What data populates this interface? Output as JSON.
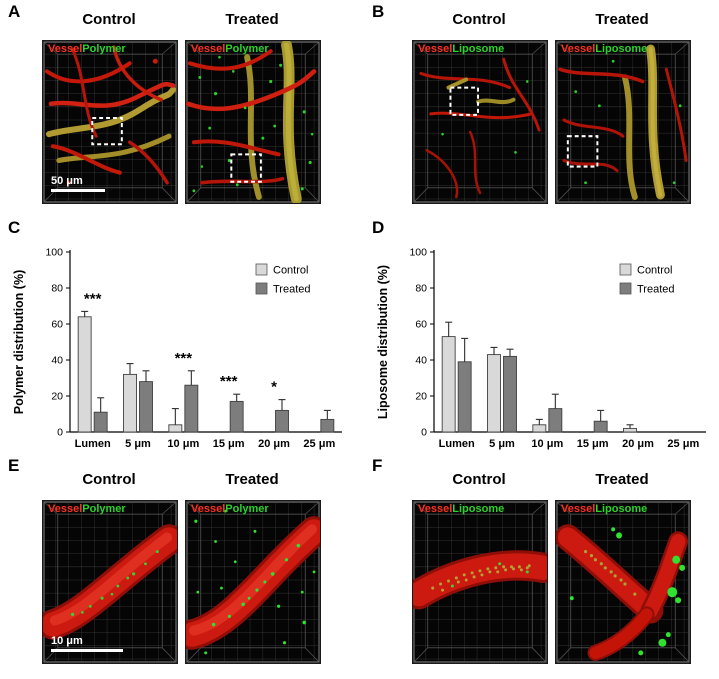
{
  "panels": {
    "A": {
      "letter": "A",
      "col1": "Control",
      "col2": "Treated",
      "legend_red": "Vessel",
      "legend_green": "Polymer",
      "scale_bar": "50 μm"
    },
    "B": {
      "letter": "B",
      "col1": "Control",
      "col2": "Treated",
      "legend_red": "Vessel",
      "legend_green": "Liposome"
    },
    "C": {
      "letter": "C"
    },
    "D": {
      "letter": "D"
    },
    "E": {
      "letter": "E",
      "col1": "Control",
      "col2": "Treated",
      "legend_red": "Vessel",
      "legend_green": "Polymer",
      "scale_bar": "10 μm"
    },
    "F": {
      "letter": "F",
      "col1": "Control",
      "col2": "Treated",
      "legend_red": "Vessel",
      "legend_green": "Liposome"
    }
  },
  "colors": {
    "control_bar": "#d9d9d9",
    "treated_bar": "#7d7d7d",
    "bar_outline": "#404040",
    "vessel_red": "#ff3020",
    "marker_green": "#2bd42b"
  },
  "chart_data": [
    {
      "type": "bar",
      "panel": "C",
      "title": "",
      "ylabel": "Polymer distribution (%)",
      "xlabel": "",
      "categories": [
        "Lumen",
        "5 μm",
        "10 μm",
        "15 μm",
        "20 μm",
        "25 μm"
      ],
      "series": [
        {
          "name": "Control",
          "values": [
            64,
            32,
            4,
            0,
            0,
            0
          ],
          "errors": [
            3,
            6,
            9,
            0,
            0,
            0
          ]
        },
        {
          "name": "Treated",
          "values": [
            11,
            28,
            26,
            17,
            12,
            7
          ],
          "errors": [
            8,
            6,
            8,
            4,
            6,
            5
          ]
        }
      ],
      "significance": [
        "***",
        "",
        "***",
        "***",
        "*",
        ""
      ],
      "ylim": [
        0,
        100
      ],
      "yticks": [
        0,
        20,
        40,
        60,
        80,
        100
      ],
      "legend": [
        "Control",
        "Treated"
      ],
      "legend_position": "top-right",
      "grid": false
    },
    {
      "type": "bar",
      "panel": "D",
      "title": "",
      "ylabel": "Liposome distribution (%)",
      "xlabel": "",
      "categories": [
        "Lumen",
        "5 μm",
        "10 μm",
        "15 μm",
        "20 μm",
        "25 μm"
      ],
      "series": [
        {
          "name": "Control",
          "values": [
            53,
            43,
            4,
            0,
            2,
            0
          ],
          "errors": [
            8,
            4,
            3,
            0,
            2,
            0
          ]
        },
        {
          "name": "Treated",
          "values": [
            39,
            42,
            13,
            6,
            0,
            0
          ],
          "errors": [
            13,
            4,
            8,
            6,
            0,
            0
          ]
        }
      ],
      "significance": [
        "",
        "",
        "",
        "",
        "",
        ""
      ],
      "ylim": [
        0,
        100
      ],
      "yticks": [
        0,
        20,
        40,
        60,
        80,
        100
      ],
      "legend": [
        "Control",
        "Treated"
      ],
      "legend_position": "top-right",
      "grid": false
    }
  ]
}
